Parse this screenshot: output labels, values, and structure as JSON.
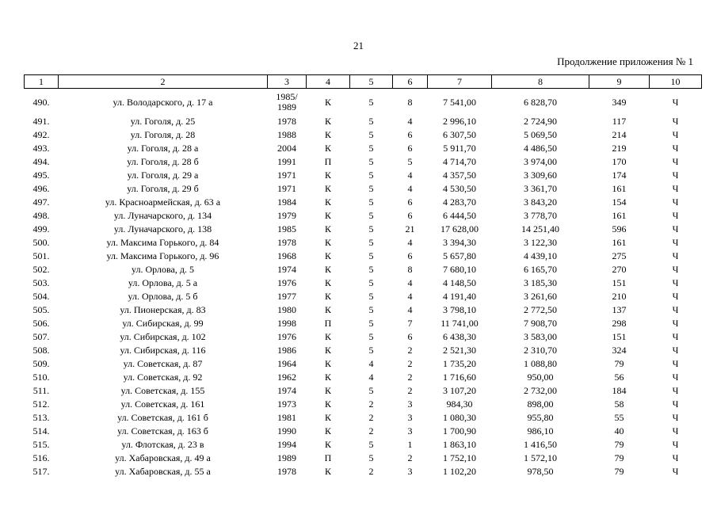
{
  "page": {
    "number": "21",
    "continuation": "Продолжение приложения № 1"
  },
  "table": {
    "headers": [
      "1",
      "2",
      "3",
      "4",
      "5",
      "6",
      "7",
      "8",
      "9",
      "10"
    ],
    "column_semantics": [
      "row-number",
      "address",
      "year-built",
      "wall-material",
      "floors",
      "entrances",
      "total-area",
      "living-area",
      "residents",
      "ownership"
    ],
    "rows": [
      [
        "490.",
        "ул. Володарского, д. 17 а",
        "1985/\n1989",
        "К",
        "5",
        "8",
        "7 541,00",
        "6 828,70",
        "349",
        "Ч"
      ],
      [
        "491.",
        "ул. Гоголя, д. 25",
        "1978",
        "К",
        "5",
        "4",
        "2 996,10",
        "2 724,90",
        "117",
        "Ч"
      ],
      [
        "492.",
        "ул. Гоголя, д. 28",
        "1988",
        "К",
        "5",
        "6",
        "6 307,50",
        "5 069,50",
        "214",
        "Ч"
      ],
      [
        "493.",
        "ул. Гоголя, д. 28 а",
        "2004",
        "К",
        "5",
        "6",
        "5 911,70",
        "4 486,50",
        "219",
        "Ч"
      ],
      [
        "494.",
        "ул. Гоголя, д. 28 б",
        "1991",
        "П",
        "5",
        "5",
        "4 714,70",
        "3 974,00",
        "170",
        "Ч"
      ],
      [
        "495.",
        "ул. Гоголя, д. 29 а",
        "1971",
        "К",
        "5",
        "4",
        "4 357,50",
        "3 309,60",
        "174",
        "Ч"
      ],
      [
        "496.",
        "ул. Гоголя, д. 29 б",
        "1971",
        "К",
        "5",
        "4",
        "4 530,50",
        "3 361,70",
        "161",
        "Ч"
      ],
      [
        "497.",
        "ул. Красноармейская, д. 63 а",
        "1984",
        "К",
        "5",
        "6",
        "4 283,70",
        "3 843,20",
        "154",
        "Ч"
      ],
      [
        "498.",
        "ул. Луначарского, д. 134",
        "1979",
        "К",
        "5",
        "6",
        "6 444,50",
        "3 778,70",
        "161",
        "Ч"
      ],
      [
        "499.",
        "ул. Луначарского, д. 138",
        "1985",
        "К",
        "5",
        "21",
        "17 628,00",
        "14 251,40",
        "596",
        "Ч"
      ],
      [
        "500.",
        "ул. Максима Горького, д. 84",
        "1978",
        "К",
        "5",
        "4",
        "3 394,30",
        "3 122,30",
        "161",
        "Ч"
      ],
      [
        "501.",
        "ул. Максима Горького, д. 96",
        "1968",
        "К",
        "5",
        "6",
        "5 657,80",
        "4 439,10",
        "275",
        "Ч"
      ],
      [
        "502.",
        "ул. Орлова, д. 5",
        "1974",
        "К",
        "5",
        "8",
        "7 680,10",
        "6 165,70",
        "270",
        "Ч"
      ],
      [
        "503.",
        "ул. Орлова, д. 5 а",
        "1976",
        "К",
        "5",
        "4",
        "4 148,50",
        "3 185,30",
        "151",
        "Ч"
      ],
      [
        "504.",
        "ул. Орлова, д. 5 б",
        "1977",
        "К",
        "5",
        "4",
        "4 191,40",
        "3 261,60",
        "210",
        "Ч"
      ],
      [
        "505.",
        "ул. Пионерская, д. 83",
        "1980",
        "К",
        "5",
        "4",
        "3 798,10",
        "2 772,50",
        "137",
        "Ч"
      ],
      [
        "506.",
        "ул. Сибирская, д. 99",
        "1998",
        "П",
        "5",
        "7",
        "11 741,00",
        "7 908,70",
        "298",
        "Ч"
      ],
      [
        "507.",
        "ул. Сибирская, д. 102",
        "1976",
        "К",
        "5",
        "6",
        "6 438,30",
        "3 583,00",
        "151",
        "Ч"
      ],
      [
        "508.",
        "ул. Сибирская, д. 116",
        "1986",
        "К",
        "5",
        "2",
        "2 521,30",
        "2 310,70",
        "324",
        "Ч"
      ],
      [
        "509.",
        "ул. Советская, д. 87",
        "1964",
        "К",
        "4",
        "2",
        "1 735,20",
        "1 088,80",
        "79",
        "Ч"
      ],
      [
        "510.",
        "ул. Советская, д. 92",
        "1962",
        "К",
        "4",
        "2",
        "1 716,60",
        "950,00",
        "56",
        "Ч"
      ],
      [
        "511.",
        "ул. Советская, д. 155",
        "1974",
        "К",
        "5",
        "2",
        "3 107,20",
        "2 732,00",
        "184",
        "Ч"
      ],
      [
        "512.",
        "ул. Советская, д. 161",
        "1973",
        "К",
        "2",
        "3",
        "984,30",
        "898,00",
        "58",
        "Ч"
      ],
      [
        "513.",
        "ул. Советская, д. 161 б",
        "1981",
        "К",
        "2",
        "3",
        "1 080,30",
        "955,80",
        "55",
        "Ч"
      ],
      [
        "514.",
        "ул. Советская, д. 163 б",
        "1990",
        "К",
        "2",
        "3",
        "1 700,90",
        "986,10",
        "40",
        "Ч"
      ],
      [
        "515.",
        "ул. Флотская, д. 23 в",
        "1994",
        "К",
        "5",
        "1",
        "1 863,10",
        "1 416,50",
        "79",
        "Ч"
      ],
      [
        "516.",
        "ул. Хабаровская, д. 49 а",
        "1989",
        "П",
        "5",
        "2",
        "1 752,10",
        "1 572,10",
        "79",
        "Ч"
      ],
      [
        "517.",
        "ул. Хабаровская, д. 55 а",
        "1978",
        "К",
        "2",
        "3",
        "1 102,20",
        "978,50",
        "79",
        "Ч"
      ]
    ]
  }
}
